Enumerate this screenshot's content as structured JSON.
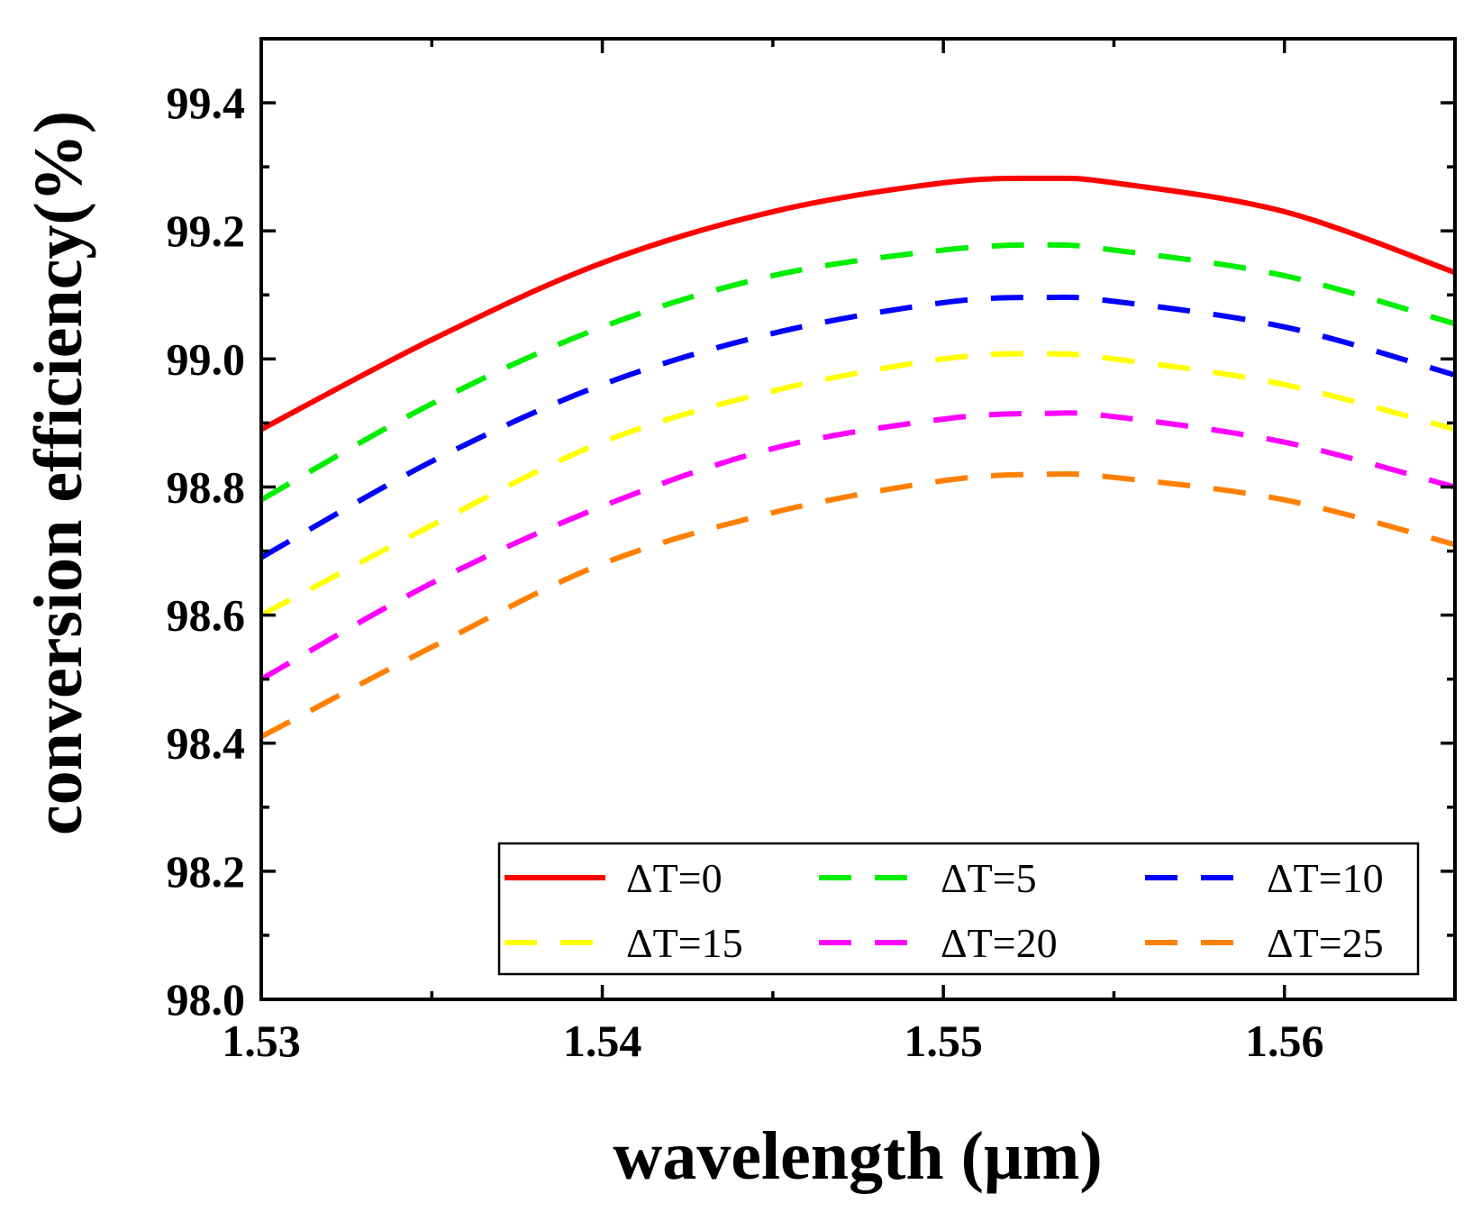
{
  "chart_data": {
    "type": "line",
    "title": "",
    "xlabel": "wavelength (μm)",
    "ylabel": "conversion efficiency(%)",
    "xlim": [
      1.53,
      1.565
    ],
    "ylim": [
      98.0,
      99.5
    ],
    "xticks": [
      1.53,
      1.54,
      1.55,
      1.56
    ],
    "xtick_labels": [
      "1.53",
      "1.54",
      "1.55",
      "1.56"
    ],
    "yticks": [
      98.0,
      98.2,
      98.4,
      98.6,
      98.8,
      99.0,
      99.2,
      99.4
    ],
    "ytick_labels": [
      "98.0",
      "98.2",
      "98.4",
      "98.6",
      "98.8",
      "99.0",
      "99.2",
      "99.4"
    ],
    "grid": false,
    "legend_position": "bottom-right",
    "x": [
      1.53,
      1.535,
      1.54,
      1.545,
      1.55,
      1.553,
      1.555,
      1.56,
      1.565
    ],
    "series": [
      {
        "name": "ΔT=0",
        "color": "#ff0000",
        "style": "solid",
        "values": [
          98.89,
          99.03,
          99.15,
          99.23,
          99.275,
          99.282,
          99.275,
          99.23,
          99.135
        ]
      },
      {
        "name": "ΔT=5",
        "color": "#00ee00",
        "style": "dashed",
        "values": [
          98.78,
          98.93,
          99.05,
          99.13,
          99.17,
          99.178,
          99.17,
          99.13,
          99.055
        ]
      },
      {
        "name": "ΔT=10",
        "color": "#0000ff",
        "style": "dashed",
        "values": [
          98.69,
          98.84,
          98.96,
          99.04,
          99.088,
          99.096,
          99.09,
          99.05,
          98.975
        ]
      },
      {
        "name": "ΔT=15",
        "color": "#ffff00",
        "style": "dashed",
        "values": [
          98.6,
          98.74,
          98.87,
          98.95,
          99.0,
          99.008,
          99.0,
          98.96,
          98.89
        ]
      },
      {
        "name": "ΔT=20",
        "color": "#ff00ff",
        "style": "dashed",
        "values": [
          98.5,
          98.65,
          98.77,
          98.86,
          98.906,
          98.915,
          98.91,
          98.87,
          98.8
        ]
      },
      {
        "name": "ΔT=25",
        "color": "#ff8000",
        "style": "dashed",
        "values": [
          98.41,
          98.55,
          98.68,
          98.76,
          98.81,
          98.82,
          98.815,
          98.78,
          98.71
        ]
      }
    ]
  }
}
